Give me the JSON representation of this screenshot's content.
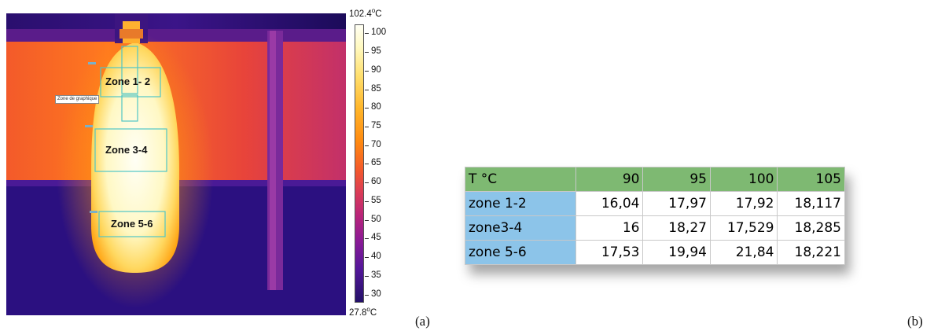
{
  "thermal_image": {
    "zones": [
      {
        "label": "Zone 1- 2"
      },
      {
        "label": "Zone 3-4"
      },
      {
        "label": "Zone 5-6"
      }
    ],
    "tooltip": "Zone de graphique"
  },
  "color_scale": {
    "max": "102.4",
    "min": "27.8",
    "unit": "C",
    "degree_mark": "o",
    "ticks": [
      "100",
      "95",
      "90",
      "85",
      "80",
      "75",
      "70",
      "65",
      "60",
      "55",
      "50",
      "45",
      "40",
      "35",
      "30"
    ]
  },
  "captions": {
    "a": "(a)",
    "b": "(b)"
  },
  "table": {
    "header": [
      "T °C",
      "90",
      "95",
      "100",
      "105"
    ],
    "rows": [
      [
        "zone 1-2",
        "16,04",
        "17,97",
        "17,92",
        "18,117"
      ],
      [
        "zone3-4",
        "16",
        "18,27",
        "17,529",
        "18,285"
      ],
      [
        "zone 5-6",
        "17,53",
        "19,94",
        "21,84",
        "18,221"
      ]
    ],
    "colors": {
      "header": "#7eb972",
      "row_header": "#8cc4e9"
    }
  }
}
